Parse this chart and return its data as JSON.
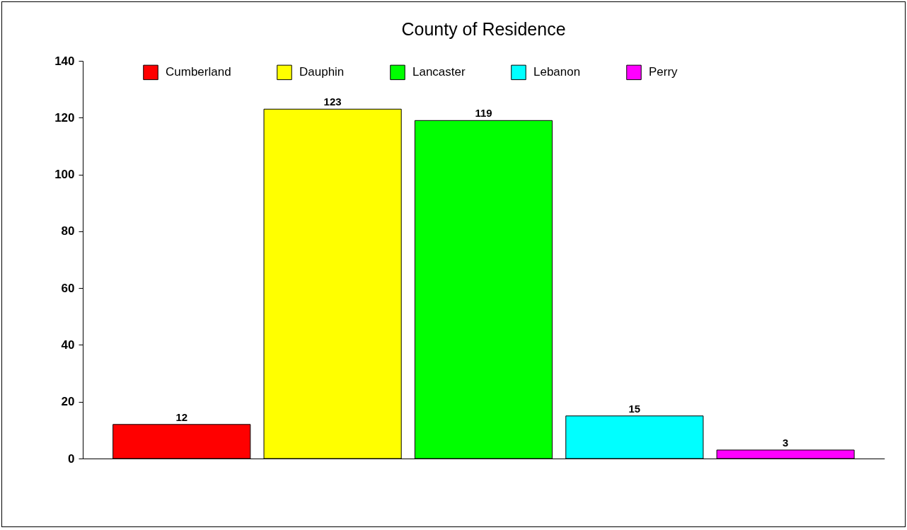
{
  "chart_data": {
    "type": "bar",
    "title": "County of Residence",
    "categories": [
      null,
      null,
      null,
      null,
      null
    ],
    "stacked": true,
    "series": [
      {
        "name": "Cumberland",
        "color": "#ff0000",
        "values": [
          12,
          null,
          null,
          null,
          null
        ]
      },
      {
        "name": "Dauphin",
        "color": "#ffff00",
        "values": [
          null,
          123,
          null,
          null,
          null
        ]
      },
      {
        "name": "Lancaster",
        "color": "#00ff00",
        "values": [
          null,
          null,
          119,
          null,
          null
        ]
      },
      {
        "name": "Lebanon",
        "color": "#00ffff",
        "values": [
          null,
          null,
          null,
          15,
          null
        ]
      },
      {
        "name": "Perry",
        "color": "#ff00ff",
        "values": [
          null,
          null,
          null,
          null,
          3
        ]
      }
    ],
    "ylim": [
      0,
      140
    ],
    "yticks": [
      0,
      20,
      40,
      60,
      80,
      100,
      120,
      140
    ],
    "data_labels": true,
    "legend": "top",
    "tick_labels": "y"
  }
}
